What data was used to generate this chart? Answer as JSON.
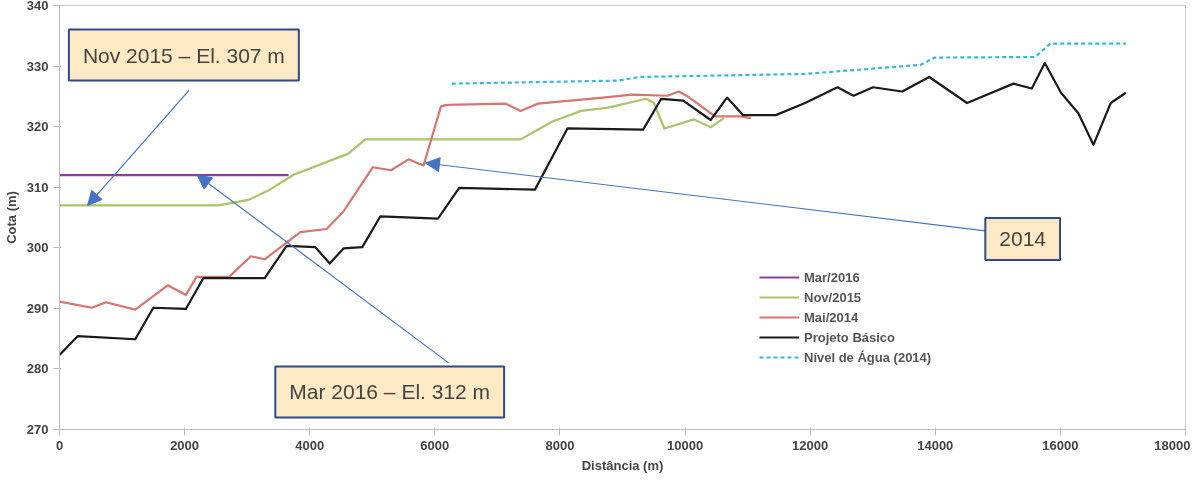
{
  "chart_data": {
    "type": "line",
    "xlabel": "Distância (m)",
    "ylabel": "Cota (m)",
    "xlim": [
      0,
      18000
    ],
    "xticks": [
      0,
      2000,
      4000,
      6000,
      8000,
      10000,
      12000,
      14000,
      16000,
      18000
    ],
    "ylim": [
      270,
      340
    ],
    "yticks": [
      270,
      280,
      290,
      300,
      310,
      320,
      330,
      340
    ],
    "grid": false,
    "legend": "right",
    "line_style": "solid",
    "series": [
      {
        "name": "Mar/2016",
        "color": "#8e3d9e",
        "x": [
          0,
          3660
        ],
        "values": [
          312,
          312
        ]
      },
      {
        "name": "Nov/2015",
        "color": "#a9c46b",
        "x": [
          0,
          2540,
          3020,
          3330,
          3750,
          4610,
          4890,
          7370,
          7890,
          8340,
          8750,
          9380,
          9500,
          9670,
          10140,
          10410,
          10620
        ],
        "values": [
          307,
          307,
          307.9,
          309.4,
          312.1,
          315.5,
          317.9,
          317.9,
          320.9,
          322.6,
          323.1,
          324.6,
          323.9,
          319.7,
          321.2,
          319.9,
          321.4
        ]
      },
      {
        "name": "Mai/2014",
        "color": "#d9756f",
        "x": [
          0,
          520,
          740,
          1210,
          1730,
          2020,
          2190,
          2710,
          3060,
          3280,
          3850,
          4270,
          4540,
          5010,
          5300,
          5580,
          5820,
          6100,
          6200,
          7130,
          7370,
          7650,
          8690,
          9150,
          9720,
          9900,
          10070,
          10480,
          10880,
          11050
        ],
        "values": [
          291.1,
          290.1,
          291,
          289.8,
          293.8,
          292.2,
          295.2,
          295.2,
          298.6,
          298.1,
          302.6,
          303.1,
          306,
          313.3,
          312.8,
          314.6,
          313.6,
          323.4,
          323.6,
          323.8,
          322.6,
          323.8,
          324.8,
          325.3,
          325.1,
          325.8,
          324.8,
          321.7,
          321.7,
          321.4
        ]
      },
      {
        "name": "Projeto Básico",
        "color": "#1a1a1a",
        "x": [
          0,
          290,
          1210,
          1500,
          2020,
          2300,
          3280,
          3630,
          4090,
          4320,
          4540,
          4840,
          5130,
          6050,
          6390,
          7600,
          8120,
          9330,
          9620,
          9970,
          10410,
          10670,
          10930,
          11450,
          11920,
          12435,
          12694,
          13005,
          13472,
          13903,
          14508,
          15250,
          15544,
          15751,
          16010,
          16287,
          16528,
          16805,
          17047
        ],
        "values": [
          282.3,
          285.4,
          284.9,
          290.1,
          289.9,
          295,
          295,
          300.3,
          300.1,
          297.4,
          299.9,
          300.1,
          305.2,
          304.8,
          309.9,
          309.6,
          319.7,
          319.5,
          324.6,
          324.3,
          321.1,
          324.8,
          321.9,
          321.9,
          323.9,
          326.5,
          325.1,
          326.5,
          325.8,
          328.2,
          323.9,
          327.1,
          326.3,
          330.5,
          325.6,
          322.2,
          317,
          323.9,
          325.6
        ]
      },
      {
        "name": "Nível de Água (2014)",
        "color": "#33b9e0",
        "line_style": "dashed",
        "x": [
          6270,
          8929,
          9275,
          11917,
          13765,
          13990,
          15596,
          15838,
          17047
        ],
        "values": [
          327.1,
          327.6,
          328.2,
          328.7,
          330.2,
          331.4,
          331.5,
          333.7,
          333.7
        ]
      }
    ],
    "annotations": [
      {
        "text": "Nov 2015 – El. 307 m",
        "x": 450,
        "y": 307
      },
      {
        "text": "Mar 2016 – El. 312 m",
        "x": 2200,
        "y": 312
      },
      {
        "text": "2014",
        "x": 5850,
        "y": 314
      }
    ]
  }
}
